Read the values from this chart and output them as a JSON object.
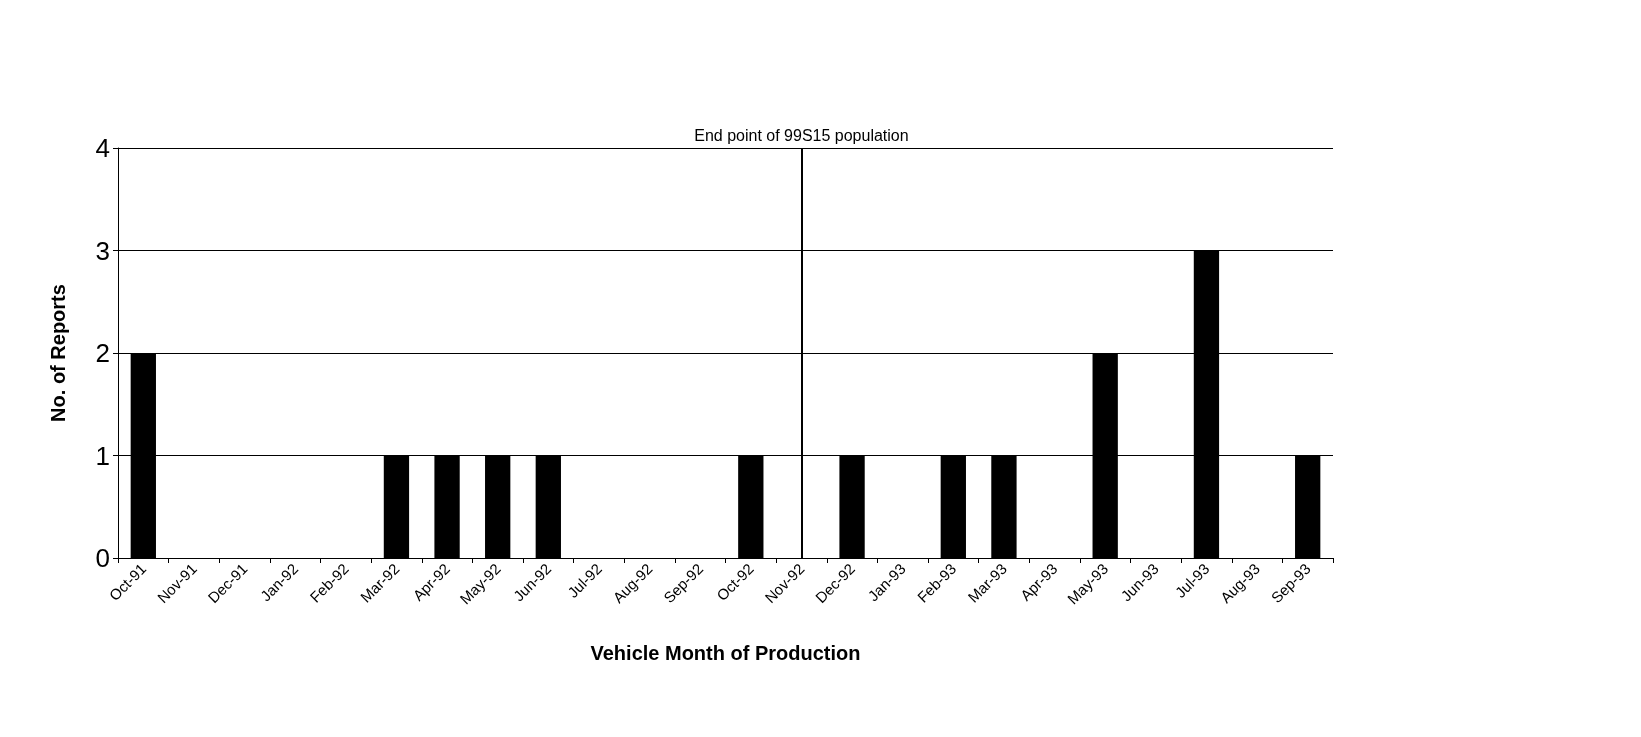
{
  "chart_data": {
    "type": "bar",
    "xlabel": "Vehicle Month of Production",
    "ylabel": "No. of Reports",
    "categories": [
      "Oct-91",
      "Nov-91",
      "Dec-91",
      "Jan-92",
      "Feb-92",
      "Mar-92",
      "Apr-92",
      "May-92",
      "Jun-92",
      "Jul-92",
      "Aug-92",
      "Sep-92",
      "Oct-92",
      "Nov-92",
      "Dec-92",
      "Jan-93",
      "Feb-93",
      "Mar-93",
      "Apr-93",
      "May-93",
      "Jun-93",
      "Jul-93",
      "Aug-93",
      "Sep-93"
    ],
    "values": [
      2,
      0,
      0,
      0,
      0,
      1,
      1,
      1,
      1,
      0,
      0,
      0,
      1,
      0,
      1,
      0,
      1,
      1,
      0,
      2,
      0,
      3,
      0,
      1
    ],
    "color": "#000000",
    "ylim": [
      0,
      4
    ],
    "yticks": [
      0,
      1,
      2,
      3,
      4
    ],
    "grid": "y",
    "ref_lines": [
      {
        "axis": "x",
        "value": "Nov-92",
        "label": "End point of 99S15 population",
        "color": "#000000"
      }
    ]
  }
}
